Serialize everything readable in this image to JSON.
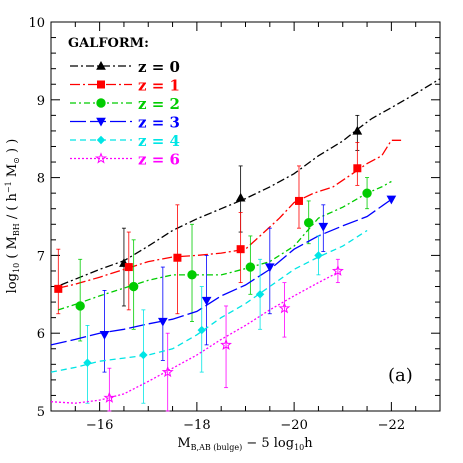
{
  "chart_data": {
    "type": "line",
    "panel_label": "(a)",
    "xlabel_main": "M",
    "xlabel_sub": "B,AB (bulge)",
    "xlabel_rest": " − 5 log",
    "xlabel_sub2": "10",
    "xlabel_end": "h",
    "ylabel_pre": "log",
    "ylabel_sub1": "10",
    "ylabel_mid": " ( M",
    "ylabel_sub2": "BH",
    "ylabel_mid2": " / ( h",
    "ylabel_sup": "−1",
    "ylabel_mid3": " M",
    "ylabel_sub3": "⊙",
    "ylabel_end": " ) )",
    "xlim": [
      -15.0,
      -23.0
    ],
    "ylim": [
      5.0,
      10.0
    ],
    "xticks": [
      -16,
      -18,
      -20,
      -22
    ],
    "xtick_labels": [
      "−16",
      "−18",
      "−20",
      "−22"
    ],
    "yticks": [
      5,
      6,
      7,
      8,
      9,
      10
    ],
    "ytick_labels": [
      "5",
      "6",
      "7",
      "8",
      "9",
      "10"
    ],
    "legend_title": "GALFORM:",
    "legend_placement": "top-left",
    "series": [
      {
        "name": "z = 0",
        "color": "#000000",
        "dash": "8,3,2,3",
        "marker": "triangle",
        "x": [
          -15.2,
          -15.6,
          -16.0,
          -16.5,
          -17.0,
          -17.5,
          -18.0,
          -18.5,
          -19.0,
          -19.5,
          -20.0,
          -20.5,
          -21.0,
          -21.3,
          -21.6,
          -22.0,
          -22.5,
          -23.0
        ],
        "y": [
          6.62,
          6.72,
          6.82,
          6.93,
          7.12,
          7.32,
          7.47,
          7.6,
          7.73,
          7.88,
          8.05,
          8.28,
          8.47,
          8.62,
          8.76,
          8.9,
          9.08,
          9.27
        ],
        "points": [
          {
            "x": -16.5,
            "y": 6.9,
            "lo": 6.35,
            "hi": 7.35
          },
          {
            "x": -18.9,
            "y": 7.74,
            "lo": 7.3,
            "hi": 8.15
          },
          {
            "x": -21.3,
            "y": 8.6,
            "lo": 8.35,
            "hi": 8.8
          }
        ]
      },
      {
        "name": "z = 1",
        "color": "#ff0000",
        "dash": "10,3,2,3",
        "marker": "square",
        "x": [
          -15.15,
          -15.5,
          -16.0,
          -16.5,
          -17.0,
          -17.5,
          -18.0,
          -18.5,
          -19.0,
          -19.3,
          -19.7,
          -20.0,
          -20.4,
          -20.8,
          -21.2,
          -21.5,
          -21.8,
          -22.0,
          -22.2
        ],
        "y": [
          6.58,
          6.63,
          6.72,
          6.82,
          6.92,
          6.98,
          7.0,
          7.03,
          7.08,
          7.25,
          7.48,
          7.68,
          7.8,
          7.88,
          8.05,
          8.18,
          8.28,
          8.48,
          8.48
        ],
        "points": [
          {
            "x": -15.15,
            "y": 6.57,
            "lo": 6.25,
            "hi": 7.08
          },
          {
            "x": -16.6,
            "y": 6.85,
            "lo": 6.3,
            "hi": 7.3
          },
          {
            "x": -17.6,
            "y": 6.97,
            "lo": 6.25,
            "hi": 7.65
          },
          {
            "x": -18.9,
            "y": 7.08,
            "lo": 6.65,
            "hi": 7.55
          },
          {
            "x": -20.1,
            "y": 7.7,
            "lo": 7.35,
            "hi": 8.15
          },
          {
            "x": -21.3,
            "y": 8.12,
            "lo": 7.9,
            "hi": 8.45
          }
        ]
      },
      {
        "name": "z = 2",
        "color": "#00cc00",
        "dash": "6,3,2,3",
        "marker": "circle",
        "x": [
          -15.15,
          -15.5,
          -16.0,
          -16.5,
          -17.0,
          -17.5,
          -18.0,
          -18.5,
          -19.0,
          -19.5,
          -20.0,
          -20.5,
          -21.0,
          -21.5,
          -21.8,
          -22.0
        ],
        "y": [
          6.3,
          6.37,
          6.48,
          6.58,
          6.68,
          6.75,
          6.75,
          6.75,
          6.83,
          6.92,
          7.12,
          7.48,
          7.62,
          7.8,
          7.88,
          7.95
        ],
        "points": [
          {
            "x": -15.6,
            "y": 6.35,
            "lo": 5.9,
            "hi": 6.95
          },
          {
            "x": -16.7,
            "y": 6.6,
            "lo": 6.05,
            "hi": 7.2
          },
          {
            "x": -17.9,
            "y": 6.75,
            "lo": 6.15,
            "hi": 7.4
          },
          {
            "x": -19.1,
            "y": 6.85,
            "lo": 6.5,
            "hi": 7.25
          },
          {
            "x": -20.3,
            "y": 7.42,
            "lo": 7.15,
            "hi": 7.7
          },
          {
            "x": -21.5,
            "y": 7.8,
            "lo": 7.6,
            "hi": 8.0
          }
        ]
      },
      {
        "name": "z = 3",
        "color": "#0000ff",
        "dash": "16,4",
        "marker": "invtriangle",
        "x": [
          -15.0,
          -15.5,
          -16.0,
          -16.5,
          -17.0,
          -17.5,
          -18.0,
          -18.5,
          -19.0,
          -19.5,
          -20.0,
          -20.5,
          -21.0,
          -21.5,
          -22.0
        ],
        "y": [
          5.85,
          5.92,
          6.0,
          6.05,
          6.12,
          6.18,
          6.28,
          6.48,
          6.62,
          6.82,
          7.08,
          7.25,
          7.38,
          7.5,
          7.72
        ],
        "points": [
          {
            "x": -16.1,
            "y": 5.98,
            "lo": 5.5,
            "hi": 6.55
          },
          {
            "x": -17.3,
            "y": 6.15,
            "lo": 5.65,
            "hi": 6.85
          },
          {
            "x": -18.2,
            "y": 6.42,
            "lo": 5.85,
            "hi": 7.0
          },
          {
            "x": -19.5,
            "y": 6.85,
            "lo": 6.25,
            "hi": 7.35
          },
          {
            "x": -20.6,
            "y": 7.37,
            "lo": 7.05,
            "hi": 7.65
          },
          {
            "x": -22.0,
            "y": 7.72,
            "lo": 7.72,
            "hi": 7.72
          }
        ]
      },
      {
        "name": "z = 4",
        "color": "#00e5e5",
        "dash": "6,4",
        "marker": "diamond",
        "x": [
          -15.0,
          -15.5,
          -16.0,
          -16.5,
          -17.0,
          -17.5,
          -18.0,
          -18.5,
          -19.0,
          -19.5,
          -20.0,
          -20.5,
          -21.0,
          -21.5
        ],
        "y": [
          5.5,
          5.56,
          5.64,
          5.68,
          5.72,
          5.8,
          5.98,
          6.2,
          6.38,
          6.6,
          6.82,
          6.98,
          7.12,
          7.32
        ],
        "points": [
          {
            "x": -15.75,
            "y": 5.62,
            "lo": 5.1,
            "hi": 6.1
          },
          {
            "x": -16.9,
            "y": 5.72,
            "lo": 5.1,
            "hi": 6.3
          },
          {
            "x": -18.1,
            "y": 6.04,
            "lo": 5.5,
            "hi": 6.6
          },
          {
            "x": -19.3,
            "y": 6.5,
            "lo": 6.05,
            "hi": 6.95
          },
          {
            "x": -20.5,
            "y": 7.0,
            "lo": 6.75,
            "hi": 7.25
          }
        ]
      },
      {
        "name": "z = 6",
        "color": "#ff00ff",
        "dash": "2,2",
        "marker": "star",
        "x": [
          -15.0,
          -15.5,
          -16.0,
          -16.5,
          -17.0,
          -17.5,
          -18.0,
          -18.5,
          -19.0,
          -19.5,
          -20.0,
          -20.5,
          -20.9
        ],
        "y": [
          5.12,
          5.1,
          5.14,
          5.22,
          5.38,
          5.55,
          5.72,
          5.92,
          6.1,
          6.3,
          6.48,
          6.65,
          6.78
        ],
        "points": [
          {
            "x": -16.2,
            "y": 5.17,
            "lo": 5.0,
            "hi": 5.55
          },
          {
            "x": -17.4,
            "y": 5.5,
            "lo": 5.0,
            "hi": 6.0
          },
          {
            "x": -18.6,
            "y": 5.85,
            "lo": 5.3,
            "hi": 6.35
          },
          {
            "x": -19.8,
            "y": 6.32,
            "lo": 5.95,
            "hi": 6.65
          },
          {
            "x": -20.9,
            "y": 6.8,
            "lo": 6.65,
            "hi": 6.95
          }
        ]
      }
    ]
  }
}
